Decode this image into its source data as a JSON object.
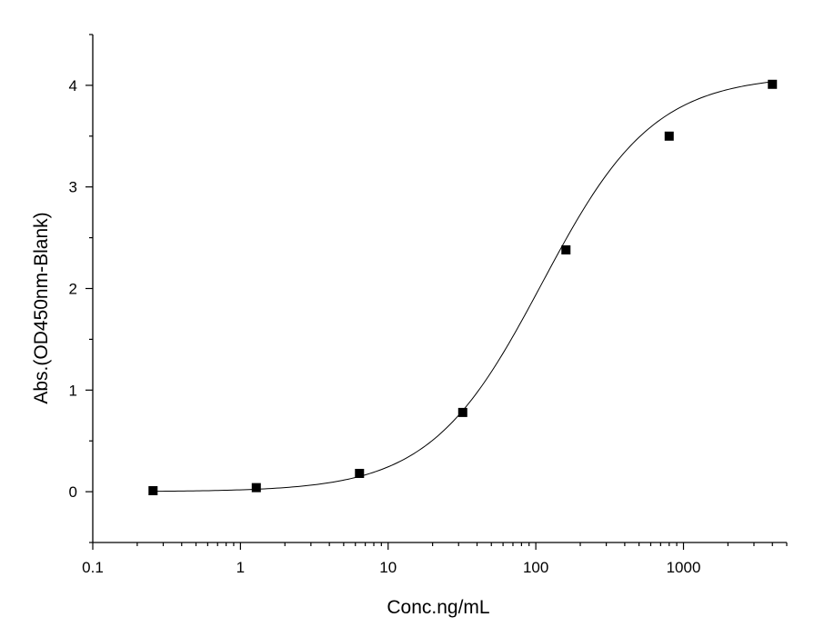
{
  "chart_data": {
    "type": "scatter",
    "title": "",
    "xlabel": "Conc.ng/mL",
    "ylabel": "Abs.(OD450nm-Blank)",
    "x_scale": "log",
    "xlim": [
      0.1,
      5000
    ],
    "ylim": [
      -0.5,
      4.5
    ],
    "x_ticks": [
      0.1,
      1,
      10,
      100,
      1000
    ],
    "x_tick_labels": [
      "0.1",
      "1",
      "10",
      "100",
      "1000"
    ],
    "y_ticks": [
      0,
      1,
      2,
      3,
      4
    ],
    "y_tick_labels": [
      "0",
      "1",
      "2",
      "3",
      "4"
    ],
    "grid": false,
    "legend": "none",
    "series": [
      {
        "marker": "square",
        "color": "#000000",
        "x": [
          0.256,
          1.28,
          6.4,
          32,
          160,
          800,
          4000
        ],
        "y": [
          0.01,
          0.04,
          0.18,
          0.78,
          2.38,
          3.5,
          4.01
        ]
      }
    ],
    "fit_curve": {
      "type": "4PL",
      "color": "#000000",
      "bottom": 0.0,
      "top": 4.1,
      "ec50": 110,
      "hill": 1.15
    }
  }
}
